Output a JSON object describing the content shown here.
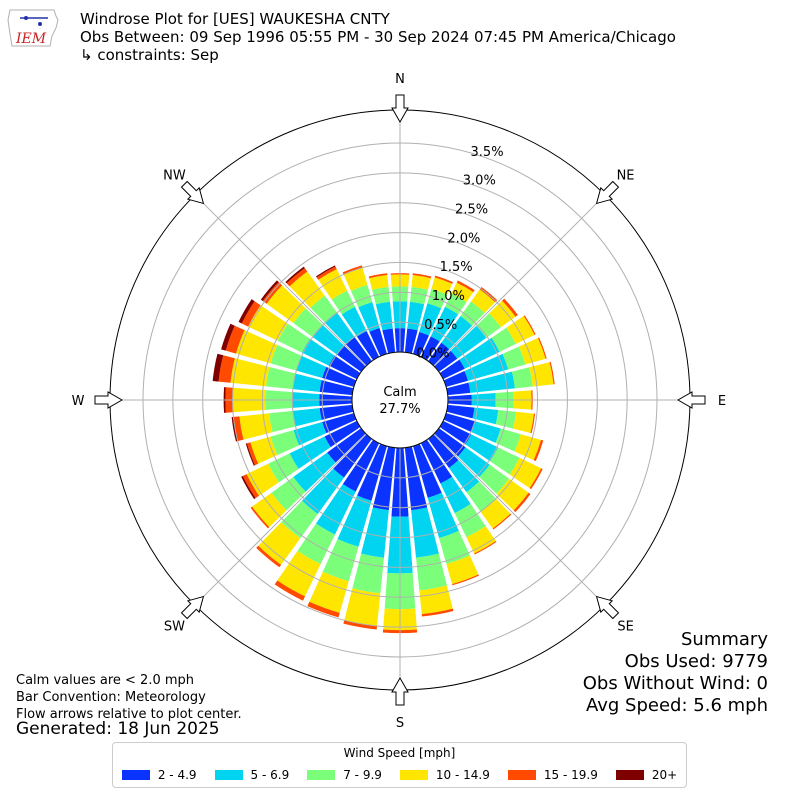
{
  "header": {
    "title": "Windrose Plot for [UES] WAUKESHA CNTY",
    "period": "Obs Between: 09 Sep 1996 05:55 PM - 30 Sep 2024 07:45 PM America/Chicago",
    "constraints": "↳ constraints: Sep",
    "logo_text": "IEM"
  },
  "notes": {
    "calm_note": "Calm values are < 2.0 mph",
    "bar_convention": "Bar Convention: Meteorology",
    "flow_note": "Flow arrows relative to plot center.",
    "generated": "Generated: 18 Jun 2025"
  },
  "summary": {
    "title": "Summary",
    "obs_used": "Obs Used: 9779",
    "obs_without_wind": "Obs Without Wind: 0",
    "avg_speed": "Avg Speed: 5.6 mph"
  },
  "legend": {
    "title": "Wind Speed [mph]"
  },
  "colors": {
    "grid": "#b0b0b0",
    "calm_fill": "#ffffff"
  },
  "chart_data": {
    "type": "windrose",
    "calm_label": "Calm",
    "calm_value": "27.7%",
    "radial_ticks": [
      "0.0%",
      "0.5%",
      "1.0%",
      "1.5%",
      "2.0%",
      "2.5%",
      "3.0%",
      "3.5%"
    ],
    "radial_tick_values": [
      0,
      0.5,
      1.0,
      1.5,
      2.0,
      2.5,
      3.0,
      3.5
    ],
    "rmax": 3.5,
    "compass_labels": [
      {
        "label": "N",
        "deg": 0
      },
      {
        "label": "NE",
        "deg": 45
      },
      {
        "label": "E",
        "deg": 90
      },
      {
        "label": "SE",
        "deg": 135
      },
      {
        "label": "S",
        "deg": 180
      },
      {
        "label": "SW",
        "deg": 225
      },
      {
        "label": "W",
        "deg": 270
      },
      {
        "label": "NW",
        "deg": 315
      }
    ],
    "directions_deg": [
      0,
      10,
      20,
      30,
      40,
      50,
      60,
      70,
      80,
      90,
      100,
      110,
      120,
      130,
      140,
      150,
      160,
      170,
      180,
      190,
      200,
      210,
      220,
      230,
      240,
      250,
      260,
      270,
      280,
      290,
      300,
      310,
      320,
      330,
      340,
      350
    ],
    "series": [
      {
        "name": "2 - 4.9",
        "color": "#0a33ff",
        "values": [
          0.4,
          0.4,
          0.38,
          0.38,
          0.38,
          0.38,
          0.4,
          0.38,
          0.38,
          0.4,
          0.45,
          0.5,
          0.52,
          0.55,
          0.6,
          0.75,
          0.9,
          1.05,
          1.15,
          1.05,
          0.95,
          0.9,
          0.8,
          0.7,
          0.6,
          0.55,
          0.55,
          0.55,
          0.55,
          0.55,
          0.52,
          0.5,
          0.5,
          0.48,
          0.45,
          0.4
        ]
      },
      {
        "name": "5 - 6.9",
        "color": "#00d4f0",
        "values": [
          0.45,
          0.45,
          0.5,
          0.55,
          0.55,
          0.6,
          0.65,
          0.7,
          0.75,
          0.4,
          0.4,
          0.45,
          0.5,
          0.5,
          0.5,
          0.55,
          0.7,
          0.8,
          0.95,
          0.8,
          0.8,
          0.8,
          0.75,
          0.7,
          0.65,
          0.5,
          0.45,
          0.45,
          0.45,
          0.45,
          0.5,
          0.5,
          0.5,
          0.45,
          0.45,
          0.45
        ]
      },
      {
        "name": "7 - 9.9",
        "color": "#7bff7b",
        "values": [
          0.25,
          0.25,
          0.25,
          0.25,
          0.3,
          0.3,
          0.3,
          0.3,
          0.3,
          0.3,
          0.3,
          0.35,
          0.4,
          0.4,
          0.4,
          0.45,
          0.45,
          0.55,
          0.6,
          0.6,
          0.6,
          0.55,
          0.5,
          0.45,
          0.4,
          0.4,
          0.4,
          0.45,
          0.45,
          0.45,
          0.45,
          0.4,
          0.35,
          0.3,
          0.3,
          0.25
        ]
      },
      {
        "name": "10 - 14.9",
        "color": "#ffe600",
        "values": [
          0.2,
          0.2,
          0.2,
          0.2,
          0.25,
          0.3,
          0.35,
          0.35,
          0.35,
          0.3,
          0.3,
          0.35,
          0.4,
          0.4,
          0.35,
          0.3,
          0.35,
          0.4,
          0.35,
          0.55,
          0.55,
          0.6,
          0.55,
          0.4,
          0.4,
          0.35,
          0.5,
          0.55,
          0.6,
          0.6,
          0.55,
          0.55,
          0.5,
          0.4,
          0.3,
          0.2
        ]
      },
      {
        "name": "15 - 19.9",
        "color": "#ff4a00",
        "values": [
          0.02,
          0.03,
          0.03,
          0.04,
          0.05,
          0.05,
          0.02,
          0.02,
          0.02,
          0.02,
          0.02,
          0.04,
          0.03,
          0.04,
          0.02,
          0.02,
          0.02,
          0.04,
          0.05,
          0.06,
          0.08,
          0.08,
          0.05,
          0.03,
          0.07,
          0.06,
          0.1,
          0.12,
          0.2,
          0.18,
          0.12,
          0.08,
          0.07,
          0.05,
          0.04,
          0.03
        ]
      },
      {
        "name": "20+",
        "color": "#7f0000",
        "values": [
          0.0,
          0.0,
          0.0,
          0.0,
          0.0,
          0.0,
          0.0,
          0.0,
          0.0,
          0.0,
          0.0,
          0.0,
          0.0,
          0.0,
          0.0,
          0.0,
          0.0,
          0.0,
          0.0,
          0.0,
          0.0,
          0.0,
          0.0,
          0.0,
          0.03,
          0.02,
          0.03,
          0.03,
          0.1,
          0.08,
          0.06,
          0.04,
          0.03,
          0.02,
          0.0,
          0.0
        ]
      }
    ]
  }
}
